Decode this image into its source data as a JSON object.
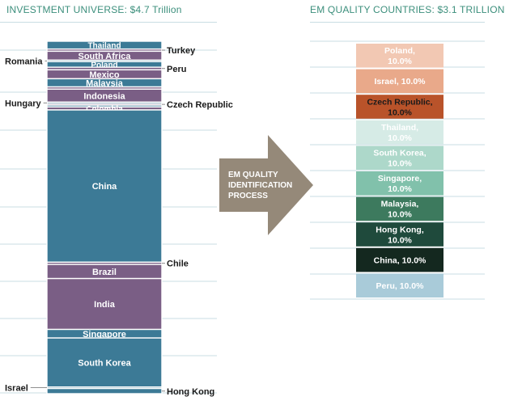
{
  "left_title": "INVESTMENT UNIVERSE: $4.7 Trillion",
  "right_title": "EM QUALITY COUNTRIES: $3.1 TRILLION",
  "arrow": {
    "lines": [
      "EM QUALITY",
      "IDENTIFICATION",
      "PROCESS"
    ],
    "color": "#958979"
  },
  "colors": {
    "blue": "#3c7a96",
    "purple": "#7a5e85",
    "gridline": "#c9dde3",
    "header": "#3c8f7c"
  },
  "chart_data": [
    {
      "type": "bar",
      "stacked": true,
      "title": "INVESTMENT UNIVERSE: $4.7 Trillion",
      "unit": "share of universe (%)",
      "segments": [
        {
          "name": "Thailand",
          "value": 2.1,
          "color": "blue",
          "label": "inside"
        },
        {
          "name": "Turkey",
          "value": 0.6,
          "color": "purple",
          "label": "right"
        },
        {
          "name": "South Africa",
          "value": 2.4,
          "color": "purple",
          "label": "inside"
        },
        {
          "name": "Romania",
          "value": 0.4,
          "color": "blue",
          "label": "left"
        },
        {
          "name": "Poland",
          "value": 1.5,
          "color": "blue",
          "label": "inside"
        },
        {
          "name": "Peru",
          "value": 0.7,
          "color": "purple",
          "label": "right"
        },
        {
          "name": "Mexico",
          "value": 2.4,
          "color": "purple",
          "label": "inside"
        },
        {
          "name": "Malaysia",
          "value": 2.2,
          "color": "blue",
          "label": "inside"
        },
        {
          "name": "",
          "value": 0.6,
          "color": "purple",
          "label": "none"
        },
        {
          "name": "Indonesia",
          "value": 3.5,
          "color": "purple",
          "label": "inside"
        },
        {
          "name": "Hungary",
          "value": 0.4,
          "color": "blue",
          "label": "left"
        },
        {
          "name": "Czech Republic",
          "value": 0.4,
          "color": "purple",
          "label": "right"
        },
        {
          "name": "",
          "value": 0.5,
          "color": "blue",
          "label": "none"
        },
        {
          "name": "Colombia",
          "value": 0.8,
          "color": "purple",
          "label": "inside"
        },
        {
          "name": "China",
          "value": 41.0,
          "color": "blue",
          "label": "inside"
        },
        {
          "name": "Chile",
          "value": 0.6,
          "color": "purple",
          "label": "right"
        },
        {
          "name": "Brazil",
          "value": 3.8,
          "color": "purple",
          "label": "inside"
        },
        {
          "name": "India",
          "value": 13.7,
          "color": "purple",
          "label": "inside"
        },
        {
          "name": "Singapore",
          "value": 2.3,
          "color": "blue",
          "label": "inside"
        },
        {
          "name": "South Korea",
          "value": 13.2,
          "color": "blue",
          "label": "inside"
        },
        {
          "name": "Israel",
          "value": 0.4,
          "color": "blue",
          "label": "left"
        },
        {
          "name": "Hong Kong",
          "value": 1.4,
          "color": "blue",
          "label": "right"
        }
      ]
    },
    {
      "type": "bar",
      "stacked": true,
      "title": "EM QUALITY COUNTRIES: $3.1 TRILLION",
      "segments": [
        {
          "name": "Poland",
          "value": 10.0,
          "label": "Poland,\n10.0%",
          "color": "#f2c8b3",
          "text_color": "#ffffff"
        },
        {
          "name": "Israel",
          "value": 10.0,
          "label": "Israel, 10.0%",
          "color": "#e9a98a",
          "text_color": "#ffffff"
        },
        {
          "name": "Czech Republic",
          "value": 10.0,
          "label": "Czech Republic,\n10.0%",
          "color": "#b9532a",
          "text_color": "#1a1a1a"
        },
        {
          "name": "Thailand",
          "value": 10.0,
          "label": "Thailand,\n10.0%",
          "color": "#d6ebe6",
          "text_color": "#ffffff"
        },
        {
          "name": "South Korea",
          "value": 10.0,
          "label": "South Korea,\n10.0%",
          "color": "#add8ca",
          "text_color": "#ffffff"
        },
        {
          "name": "Singapore",
          "value": 10.0,
          "label": "Singapore,\n10.0%",
          "color": "#81c1ab",
          "text_color": "#ffffff"
        },
        {
          "name": "Malaysia",
          "value": 10.0,
          "label": "Malaysia,\n10.0%",
          "color": "#3d7a5e",
          "text_color": "#ffffff"
        },
        {
          "name": "Hong Kong",
          "value": 10.0,
          "label": "Hong Kong,\n10.0%",
          "color": "#1f4a3c",
          "text_color": "#ffffff"
        },
        {
          "name": "China",
          "value": 10.0,
          "label": "China, 10.0%",
          "color": "#14281f",
          "text_color": "#ffffff"
        },
        {
          "name": "Peru",
          "value": 10.0,
          "label": "Peru, 10.0%",
          "color": "#a9cbd9",
          "text_color": "#ffffff"
        }
      ]
    }
  ]
}
